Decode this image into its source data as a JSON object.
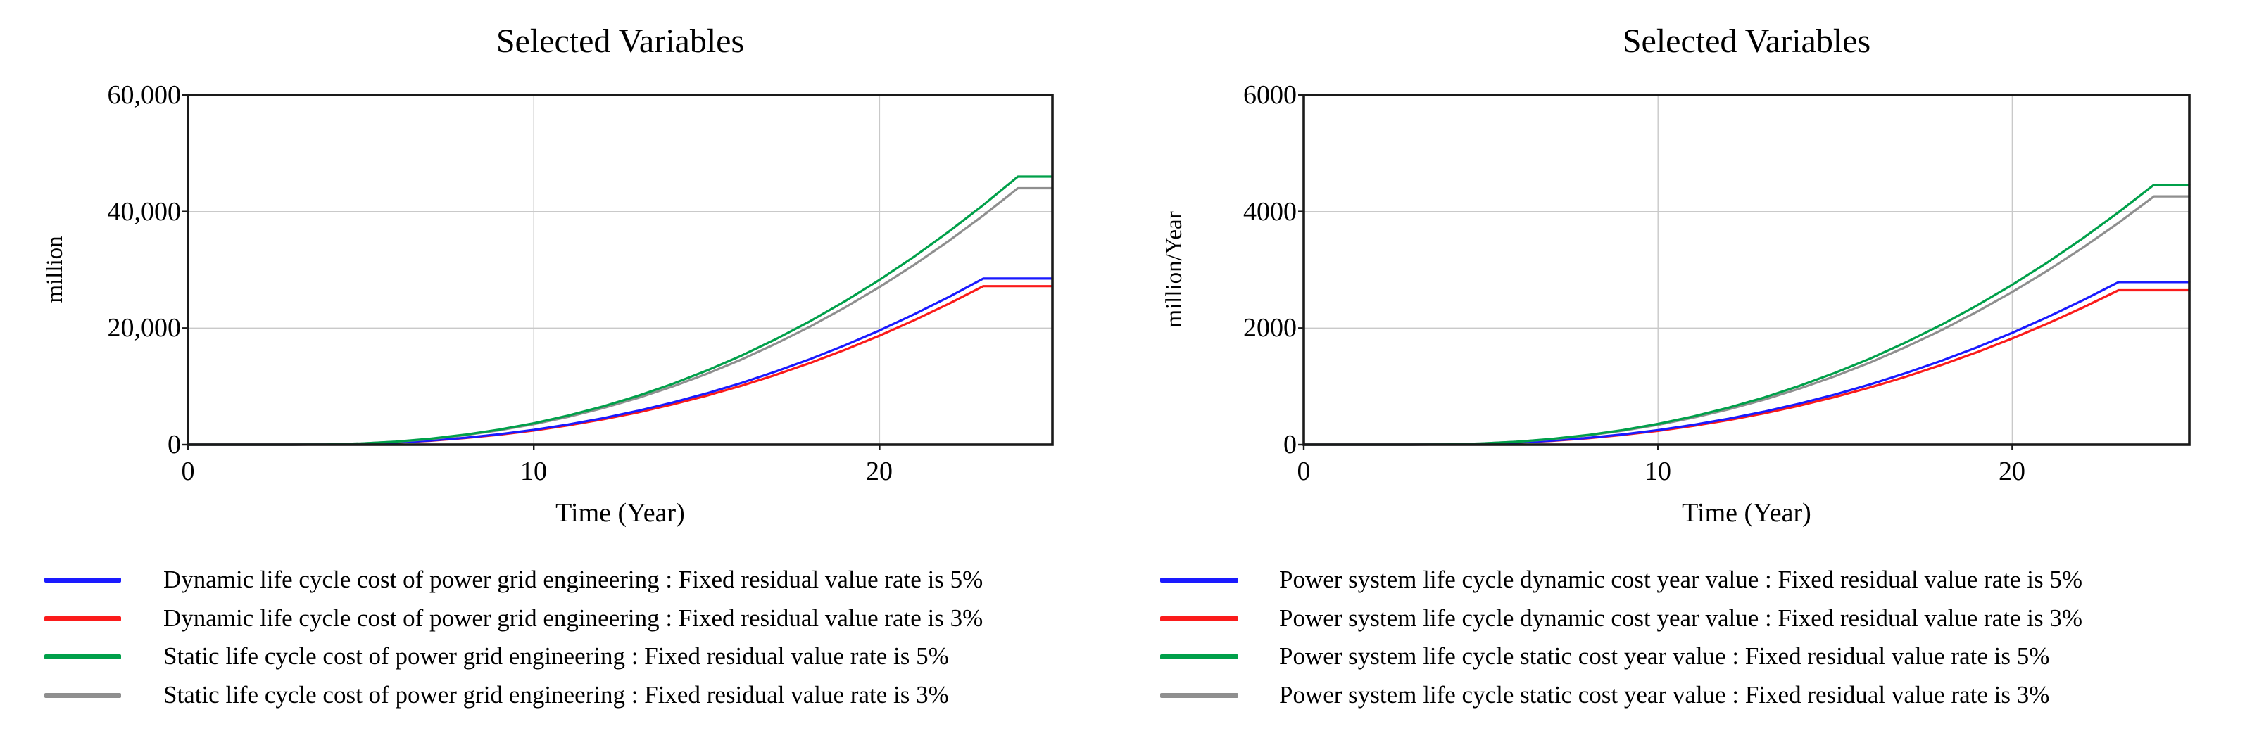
{
  "chart_data": [
    {
      "type": "line",
      "title": "Selected Variables",
      "xlabel": "Time (Year)",
      "ylabel": "million",
      "xlim": [
        0,
        25
      ],
      "ylim": [
        0,
        60000
      ],
      "xticks": [
        0,
        10,
        20
      ],
      "xtick_labels": [
        "0",
        "10",
        "20"
      ],
      "yticks": [
        0,
        20000,
        40000,
        60000
      ],
      "ytick_labels": [
        "0",
        "20,000",
        "40,000",
        "60,000"
      ],
      "grid": true,
      "legend_position": "below",
      "draw_order": [
        1,
        0,
        3,
        2
      ],
      "x": [
        0,
        1,
        2,
        3,
        4,
        5,
        6,
        7,
        8,
        9,
        10,
        11,
        12,
        13,
        14,
        15,
        16,
        17,
        18,
        19,
        20,
        21,
        22,
        23,
        24,
        25
      ],
      "series": [
        {
          "name": "Dynamic life cycle cost of power grid engineering : Fixed residual value rate is 5%",
          "color": "#1a1aff",
          "values": [
            0,
            0,
            0,
            0,
            30,
            140,
            360,
            700,
            1170,
            1790,
            2550,
            3470,
            4540,
            5790,
            7210,
            8800,
            10580,
            12550,
            14710,
            17060,
            19610,
            22370,
            25330,
            28500,
            28500,
            28500
          ]
        },
        {
          "name": "Dynamic life cycle cost of power grid engineering : Fixed residual value rate is 3%",
          "color": "#fb1b1b",
          "values": [
            0,
            0,
            0,
            0,
            30,
            135,
            345,
            670,
            1120,
            1700,
            2430,
            3310,
            4330,
            5520,
            6880,
            8400,
            10100,
            11970,
            14040,
            16280,
            18710,
            21340,
            24170,
            27200,
            27200,
            27200
          ]
        },
        {
          "name": "Static life cycle cost of power grid engineering : Fixed residual value rate is 5%",
          "color": "#00a04a",
          "values": [
            0,
            0,
            0,
            0,
            40,
            210,
            520,
            1020,
            1700,
            2580,
            3670,
            5000,
            6560,
            8350,
            10400,
            12700,
            15260,
            18110,
            21210,
            24610,
            28290,
            32260,
            36540,
            41120,
            46000,
            46000
          ]
        },
        {
          "name": "Static life cycle cost of power grid engineering : Fixed residual value rate is 3%",
          "color": "#8f8f8f",
          "values": [
            0,
            0,
            0,
            0,
            40,
            200,
            500,
            970,
            1620,
            2460,
            3510,
            4780,
            6270,
            7990,
            9950,
            12150,
            14600,
            17320,
            20290,
            23540,
            27060,
            30860,
            34950,
            39330,
            44000,
            44000
          ]
        }
      ]
    },
    {
      "type": "line",
      "title": "Selected Variables",
      "xlabel": "Time (Year)",
      "ylabel": "million/Year",
      "xlim": [
        0,
        25
      ],
      "ylim": [
        0,
        6000
      ],
      "xticks": [
        0,
        10,
        20
      ],
      "xtick_labels": [
        "0",
        "10",
        "20"
      ],
      "yticks": [
        0,
        2000,
        4000,
        6000
      ],
      "ytick_labels": [
        "0",
        "2000",
        "4000",
        "6000"
      ],
      "grid": true,
      "legend_position": "below",
      "draw_order": [
        1,
        0,
        3,
        2
      ],
      "x": [
        0,
        1,
        2,
        3,
        4,
        5,
        6,
        7,
        8,
        9,
        10,
        11,
        12,
        13,
        14,
        15,
        16,
        17,
        18,
        19,
        20,
        21,
        22,
        23,
        24,
        25
      ],
      "series": [
        {
          "name": "Power system life cycle dynamic cost year value : Fixed residual value rate is 5%",
          "color": "#1a1aff",
          "values": [
            0,
            0,
            0,
            0,
            3,
            14,
            36,
            69,
            115,
            175,
            250,
            340,
            445,
            567,
            706,
            861,
            1036,
            1229,
            1440,
            1670,
            1920,
            2190,
            2480,
            2790,
            2790,
            2790
          ]
        },
        {
          "name": "Power system life cycle dynamic cost year value : Fixed residual value rate is 3%",
          "color": "#fb1b1b",
          "values": [
            0,
            0,
            0,
            0,
            3,
            13,
            34,
            65,
            109,
            166,
            237,
            322,
            422,
            538,
            670,
            818,
            984,
            1166,
            1368,
            1586,
            1823,
            2079,
            2354,
            2650,
            2650,
            2650
          ]
        },
        {
          "name": "Power system life cycle static cost year value : Fixed residual value rate is 5%",
          "color": "#00a04a",
          "values": [
            0,
            0,
            0,
            0,
            4,
            20,
            50,
            99,
            164,
            250,
            356,
            485,
            636,
            810,
            1010,
            1232,
            1480,
            1757,
            2057,
            2387,
            2744,
            3129,
            3544,
            3988,
            4460,
            4460
          ]
        },
        {
          "name": "Power system life cycle static cost year value : Fixed residual value rate is 3%",
          "color": "#8f8f8f",
          "values": [
            0,
            0,
            0,
            0,
            4,
            19,
            49,
            94,
            157,
            239,
            340,
            463,
            607,
            773,
            963,
            1176,
            1413,
            1677,
            1964,
            2279,
            2620,
            2988,
            3383,
            3807,
            4260,
            4260
          ]
        }
      ]
    }
  ],
  "style": {
    "axis_color": "#1a1a1a",
    "grid_color": "#c9c9c9",
    "background": "#ffffff"
  }
}
